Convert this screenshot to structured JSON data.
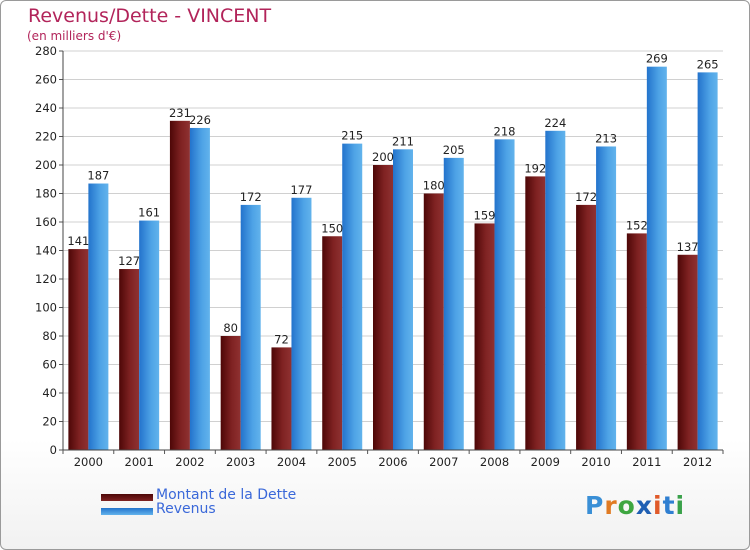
{
  "title": "Revenus/Dette - VINCENT",
  "subtitle": "(en milliers d'€)",
  "legend": [
    {
      "label": "Montant de la Dette",
      "color": "#6e0e0e"
    },
    {
      "label": "Revenus",
      "color": "#3b8fdc"
    }
  ],
  "logo": {
    "text": "Proxiti",
    "colors": [
      "#3a8fd6",
      "#e07b23",
      "#3ea640",
      "#1f5fb3",
      "#e05a2a",
      "#2f7fd1",
      "#3aa14a"
    ]
  },
  "colors": {
    "dette_dark": "#5c0909",
    "dette_light": "#8b2d2d",
    "revenus_dark": "#2a7ad2",
    "revenus_light": "#5aade8",
    "grid": "#d0d0d0",
    "label": "#222222"
  },
  "chart_data": {
    "type": "bar",
    "categories": [
      "2000",
      "2001",
      "2002",
      "2003",
      "2004",
      "2005",
      "2006",
      "2007",
      "2008",
      "2009",
      "2010",
      "2011",
      "2012"
    ],
    "series": [
      {
        "name": "Montant de la Dette",
        "values": [
          141,
          127,
          231,
          80,
          72,
          150,
          200,
          180,
          159,
          192,
          172,
          152,
          137
        ]
      },
      {
        "name": "Revenus",
        "values": [
          187,
          161,
          226,
          172,
          177,
          215,
          211,
          205,
          218,
          224,
          213,
          269,
          265
        ]
      }
    ],
    "yticks": [
      0,
      20,
      40,
      60,
      80,
      100,
      120,
      140,
      160,
      180,
      200,
      220,
      240,
      260,
      280
    ],
    "ylim": [
      0,
      280
    ],
    "grid": true,
    "legend_position": "bottom-left"
  }
}
